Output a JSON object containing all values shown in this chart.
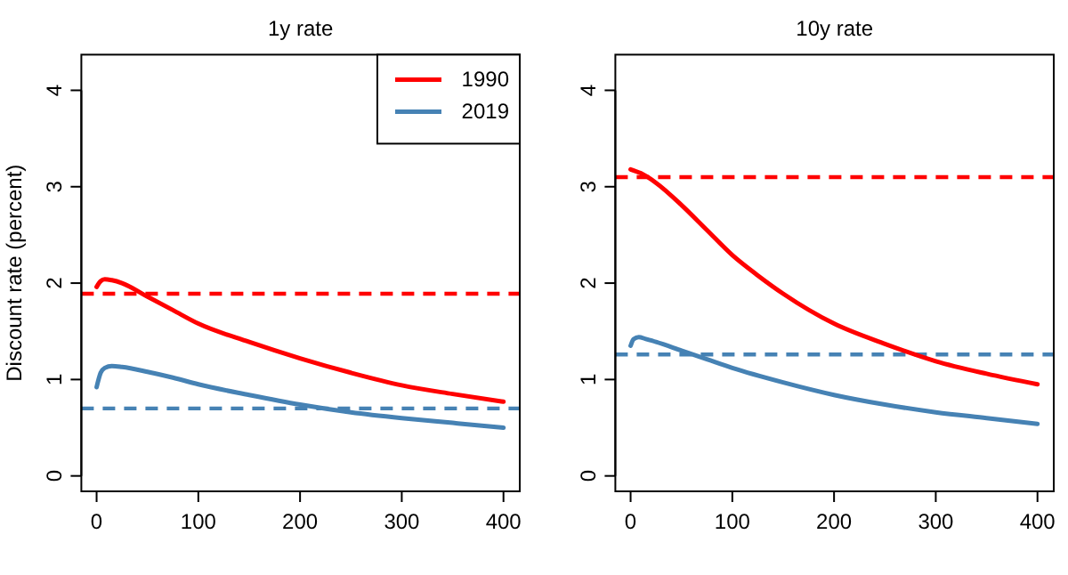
{
  "chart_data": [
    {
      "type": "line",
      "title": "1y rate",
      "ylabel": "Discount rate (percent)",
      "xlim": [
        -15,
        416
      ],
      "ylim": [
        -0.16,
        4.37
      ],
      "xticks": [
        0,
        100,
        200,
        300,
        400
      ],
      "yticks": [
        0,
        1,
        2,
        3,
        4
      ],
      "grid": false,
      "legend": "top right",
      "marker": "none",
      "line_style": "solid",
      "series": [
        {
          "name": "1990",
          "color": "#ff0000",
          "x": [
            0,
            4,
            8,
            15,
            25,
            50,
            75,
            100,
            150,
            200,
            250,
            300,
            350,
            400
          ],
          "values": [
            1.96,
            2.02,
            2.04,
            2.03,
            2.0,
            1.86,
            1.72,
            1.58,
            1.39,
            1.22,
            1.07,
            0.94,
            0.85,
            0.77
          ]
        },
        {
          "name": "2019",
          "color": "#4682b4",
          "x": [
            0,
            4,
            8,
            15,
            25,
            50,
            75,
            100,
            150,
            200,
            250,
            300,
            350,
            400
          ],
          "values": [
            0.92,
            1.07,
            1.12,
            1.14,
            1.13,
            1.08,
            1.02,
            0.95,
            0.84,
            0.74,
            0.66,
            0.6,
            0.55,
            0.5
          ]
        }
      ],
      "ref_lines": [
        {
          "axis": "y",
          "value": 1.89,
          "color": "#ff0000",
          "line_style": "dashed"
        },
        {
          "axis": "y",
          "value": 0.7,
          "color": "#4682b4",
          "line_style": "dashed"
        }
      ]
    },
    {
      "type": "line",
      "title": "10y rate",
      "xlim": [
        -15,
        416
      ],
      "ylim": [
        -0.16,
        4.37
      ],
      "xticks": [
        0,
        100,
        200,
        300,
        400
      ],
      "yticks": [
        0,
        1,
        2,
        3,
        4
      ],
      "grid": false,
      "legend": false,
      "marker": "none",
      "line_style": "solid",
      "series": [
        {
          "color": "#ff0000",
          "x": [
            0,
            10,
            25,
            50,
            75,
            100,
            125,
            150,
            200,
            250,
            300,
            350,
            400
          ],
          "values": [
            3.18,
            3.14,
            3.04,
            2.81,
            2.55,
            2.29,
            2.08,
            1.89,
            1.58,
            1.37,
            1.19,
            1.06,
            0.95
          ]
        },
        {
          "color": "#4682b4",
          "x": [
            0,
            3,
            8,
            15,
            25,
            50,
            75,
            100,
            150,
            200,
            250,
            300,
            350,
            400
          ],
          "values": [
            1.35,
            1.42,
            1.44,
            1.42,
            1.39,
            1.3,
            1.21,
            1.12,
            0.97,
            0.84,
            0.74,
            0.66,
            0.6,
            0.54
          ]
        }
      ],
      "ref_lines": [
        {
          "axis": "y",
          "value": 3.1,
          "color": "#ff0000",
          "line_style": "dashed"
        },
        {
          "axis": "y",
          "value": 1.26,
          "color": "#4682b4",
          "line_style": "dashed"
        }
      ]
    }
  ]
}
